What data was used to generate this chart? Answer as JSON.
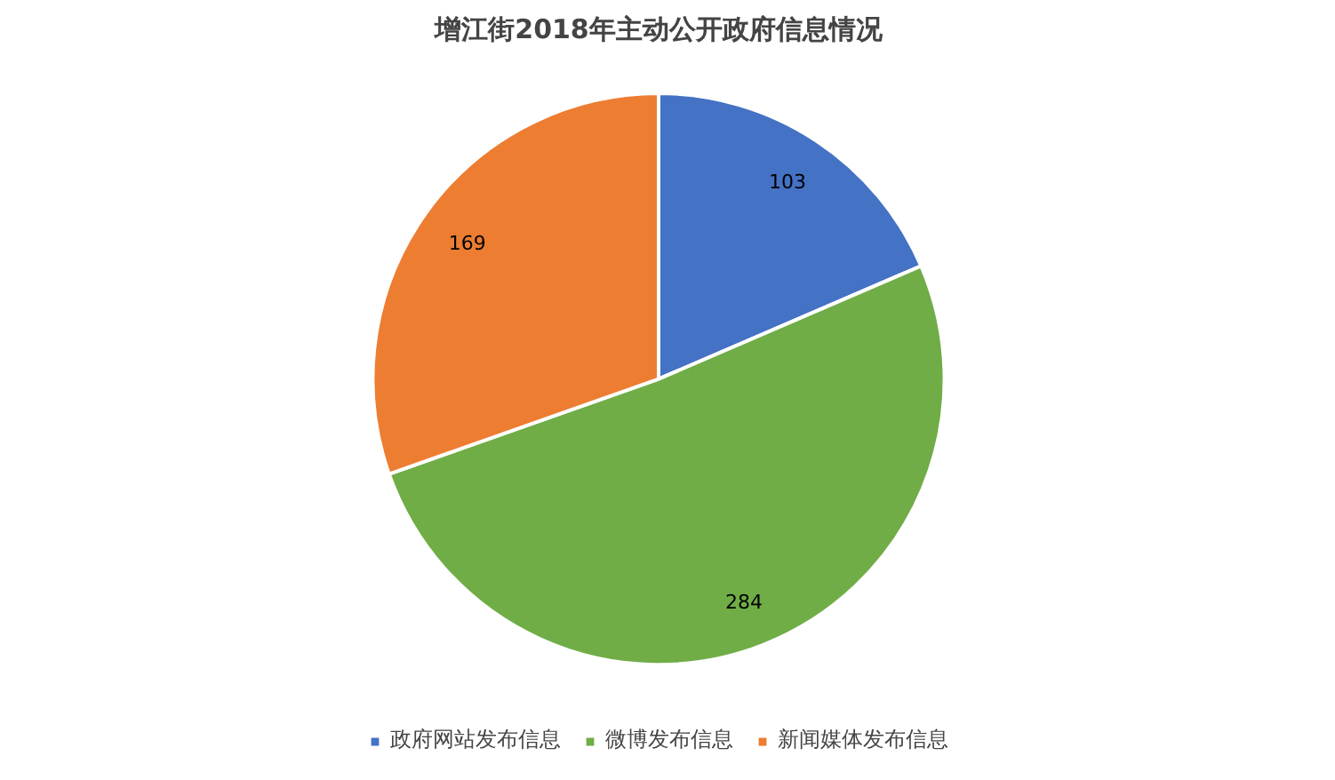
{
  "chart_data": {
    "type": "pie",
    "title": "增江街2018年主动公开政府信息情况",
    "categories": [
      "政府网站发布信息",
      "微博发布信息",
      "新闻媒体发布信息"
    ],
    "values": [
      103,
      284,
      169
    ],
    "colors": [
      "#4472c4",
      "#70ad47",
      "#ed7d31"
    ],
    "data_labels": true,
    "legend": "bottom"
  }
}
